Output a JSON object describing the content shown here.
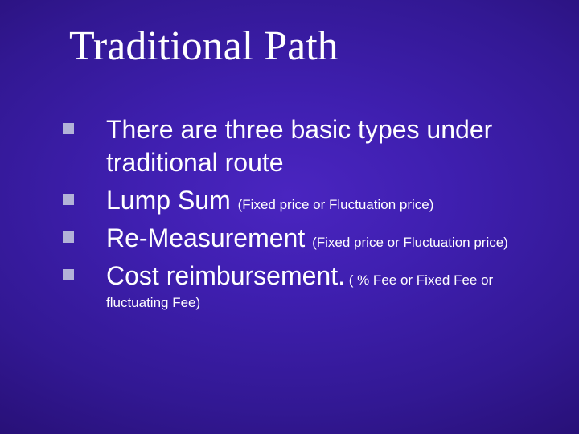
{
  "slide": {
    "title": "Traditional Path",
    "background_gradient": {
      "center": "#4a25c0",
      "mid": "#321893",
      "edge": "#1e0a5c"
    },
    "title_color": "#ffffff",
    "title_fontsize": 52,
    "title_fontfamily": "Times New Roman",
    "bullet_marker_color": "#b2b2d8",
    "bullet_marker_size": 14,
    "body_fontfamily": "Arial",
    "body_fontsize_main": 32,
    "body_fontsize_sub": 17,
    "body_color": "#ffffff",
    "items": [
      {
        "main": "There are three basic types under traditional route",
        "sub": ""
      },
      {
        "main": "Lump Sum ",
        "sub": "(Fixed price or Fluctuation price)"
      },
      {
        "main": "Re-Measurement ",
        "sub": "(Fixed price or Fluctuation price)"
      },
      {
        "main": "Cost reimbursement.",
        "sub": " ( % Fee or Fixed Fee or ",
        "sub_wrap": "fluctuating Fee)"
      }
    ]
  }
}
